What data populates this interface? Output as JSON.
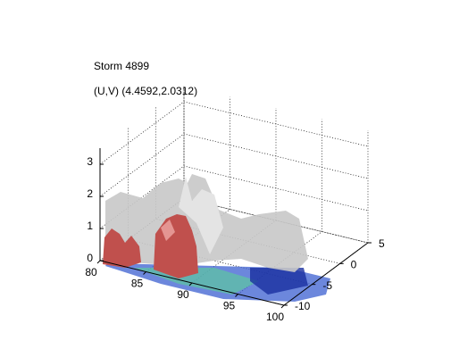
{
  "chart_data": {
    "type": "surface3d",
    "title": "Storm 4899",
    "subtitle": "(U,V) (4.4592,2.0312)",
    "xlim": [
      80,
      100
    ],
    "xticks": [
      80,
      85,
      90,
      95,
      100
    ],
    "ylim": [
      -10,
      5
    ],
    "yticks": [
      -10,
      -5,
      0,
      5
    ],
    "zlim": [
      0,
      3.5
    ],
    "zticks": [
      0,
      1,
      2,
      3
    ],
    "grid": true
  }
}
